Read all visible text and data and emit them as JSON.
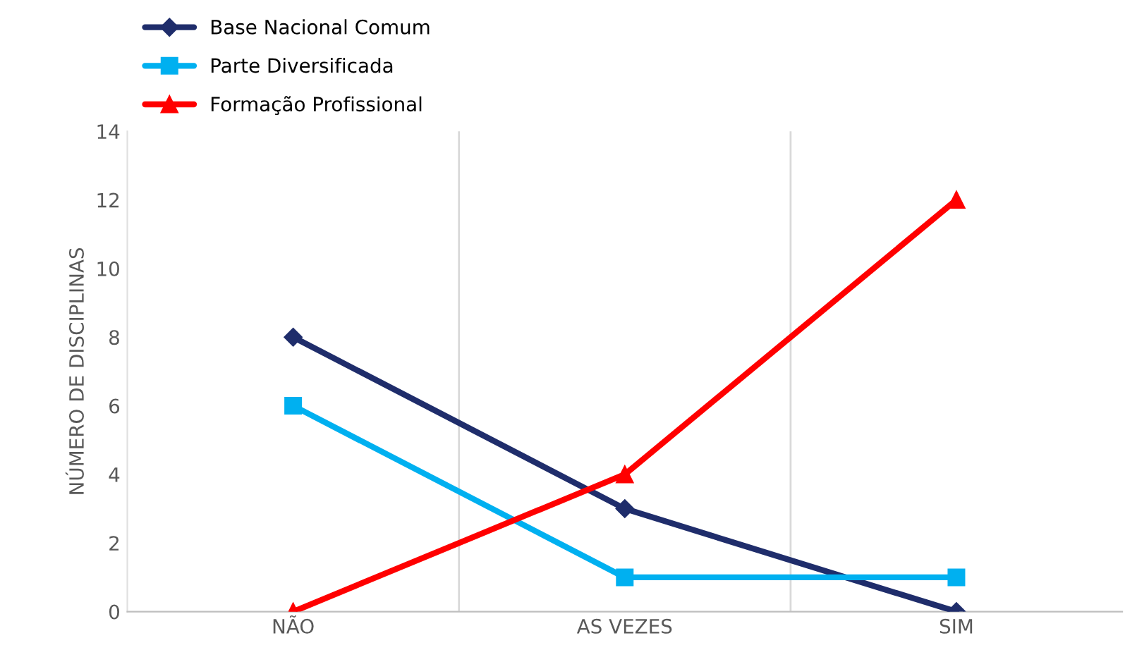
{
  "chart_data": {
    "type": "line",
    "ylabel": "NÚMERO DE DISCIPLINAS",
    "categories": [
      "NÃO",
      "AS VEZES",
      "SIM"
    ],
    "series": [
      {
        "name": "Base Nacional Comum",
        "color": "#1f2d6b",
        "marker": "diamond",
        "values": [
          8,
          3,
          0
        ]
      },
      {
        "name": "Parte Diversificada",
        "color": "#00b0f0",
        "marker": "square",
        "values": [
          6,
          1,
          1
        ]
      },
      {
        "name": "Formação Profissional",
        "color": "#ff0000",
        "marker": "triangle",
        "values": [
          0,
          4,
          12
        ]
      }
    ],
    "ylim": [
      0,
      14
    ],
    "yticks": [
      0,
      2,
      4,
      6,
      8,
      10,
      12,
      14
    ],
    "grid": "x",
    "legend": "top left",
    "line_style": "solid"
  }
}
